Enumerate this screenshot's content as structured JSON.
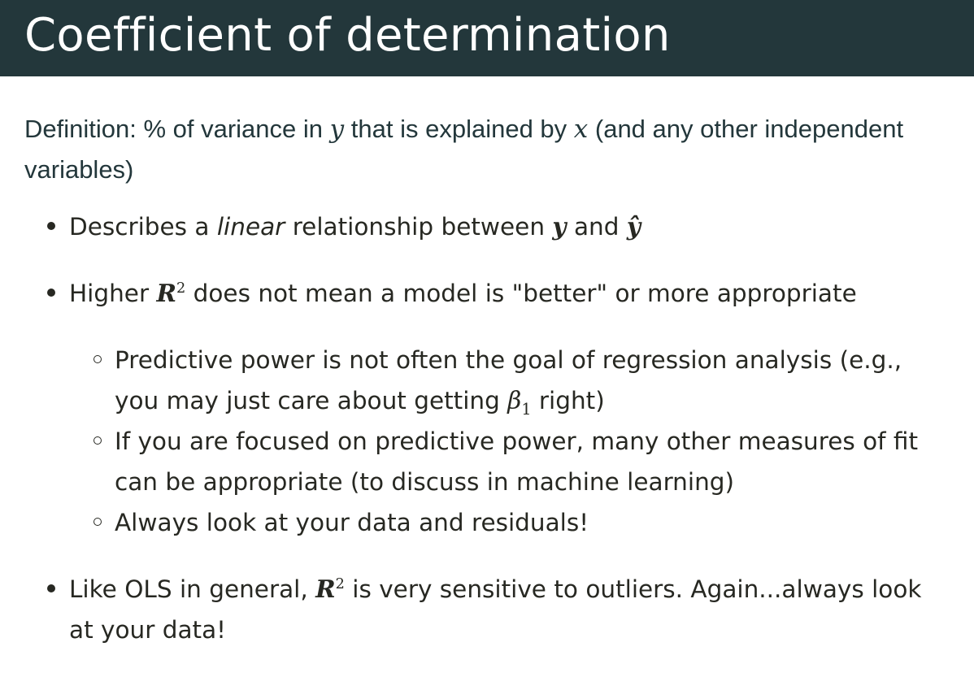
{
  "slide": {
    "title": "Coefficient of determination"
  },
  "definition": {
    "prefix": "Definition: % of variance in ",
    "var_y": "y",
    "middle": " that is explained by ",
    "var_x": "x",
    "suffix": " (and any other independent variables)"
  },
  "bullets": {
    "b1": {
      "prefix": "Describes a ",
      "emph": "linear",
      "middle": " relationship between ",
      "var_y": "y",
      "and": " and ",
      "var_yhat": "ŷ"
    },
    "b2": {
      "prefix": "Higher ",
      "r": "R",
      "sup": "2",
      "suffix": " does not mean a model is \"better\" or more appropriate",
      "sub_items": {
        "s1": {
          "prefix": "Predictive power is not often the goal of regression analysis (e.g., you may just care about getting ",
          "beta": "β",
          "beta_sub": "1",
          "suffix": " right)"
        },
        "s2": {
          "text": "If you are focused on predictive power, many other measures of fit can be appropriate (to discuss in machine learning)"
        },
        "s3": {
          "text": "Always look at your data and residuals!"
        }
      }
    },
    "b3": {
      "prefix": "Like OLS in general, ",
      "r": "R",
      "sup": "2",
      "suffix": " is very sensitive to outliers. Again...always look at your data!"
    }
  }
}
